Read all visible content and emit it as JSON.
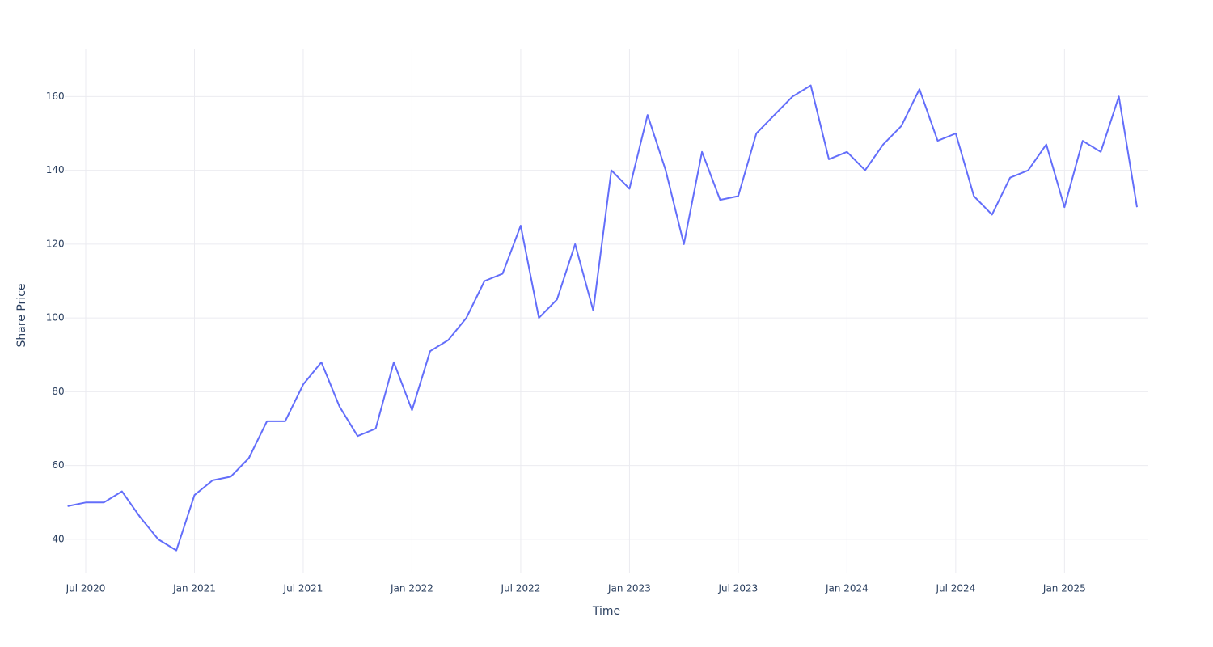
{
  "chart_data": {
    "type": "line",
    "x_title": "Time",
    "y_title": "Share Price",
    "x": [
      "2020-06",
      "2020-07",
      "2020-08",
      "2020-09",
      "2020-10",
      "2020-11",
      "2020-12",
      "2021-01",
      "2021-02",
      "2021-03",
      "2021-04",
      "2021-05",
      "2021-06",
      "2021-07",
      "2021-08",
      "2021-09",
      "2021-10",
      "2021-11",
      "2021-12",
      "2022-01",
      "2022-02",
      "2022-03",
      "2022-04",
      "2022-05",
      "2022-06",
      "2022-07",
      "2022-08",
      "2022-09",
      "2022-10",
      "2022-11",
      "2022-12",
      "2023-01",
      "2023-02",
      "2023-03",
      "2023-04",
      "2023-05",
      "2023-06",
      "2023-07",
      "2023-08",
      "2023-09",
      "2023-10",
      "2023-11",
      "2023-12",
      "2024-01",
      "2024-02",
      "2024-03",
      "2024-04",
      "2024-05",
      "2024-06",
      "2024-07",
      "2024-08",
      "2024-09",
      "2024-10",
      "2024-11",
      "2024-12",
      "2025-01",
      "2025-02",
      "2025-03",
      "2025-04",
      "2025-05"
    ],
    "series": [
      {
        "color": "#636efa",
        "values": [
          49,
          50,
          50,
          53,
          46,
          40,
          37,
          52,
          56,
          57,
          62,
          72,
          72,
          82,
          88,
          76,
          68,
          70,
          88,
          75,
          91,
          94,
          100,
          110,
          112,
          125,
          100,
          105,
          120,
          102,
          140,
          135,
          155,
          140,
          120,
          145,
          132,
          133,
          150,
          155,
          160,
          163,
          143,
          145,
          140,
          147,
          152,
          162,
          148,
          150,
          133,
          128,
          138,
          140,
          147,
          130,
          148,
          145,
          160,
          130
        ]
      }
    ],
    "xlim": [
      "2020-06",
      "2025-05"
    ],
    "xticks": [
      {
        "value": "2020-07",
        "label": "Jul 2020"
      },
      {
        "value": "2021-01",
        "label": "Jan 2021"
      },
      {
        "value": "2021-07",
        "label": "Jul 2021"
      },
      {
        "value": "2022-01",
        "label": "Jan 2022"
      },
      {
        "value": "2022-07",
        "label": "Jul 2022"
      },
      {
        "value": "2023-01",
        "label": "Jan 2023"
      },
      {
        "value": "2023-07",
        "label": "Jul 2023"
      },
      {
        "value": "2024-01",
        "label": "Jan 2024"
      },
      {
        "value": "2024-07",
        "label": "Jul 2024"
      },
      {
        "value": "2025-01",
        "label": "Jan 2025"
      }
    ],
    "ylim": [
      31,
      173
    ],
    "yticks": [
      40,
      60,
      80,
      100,
      120,
      140,
      160
    ],
    "grid": true
  }
}
